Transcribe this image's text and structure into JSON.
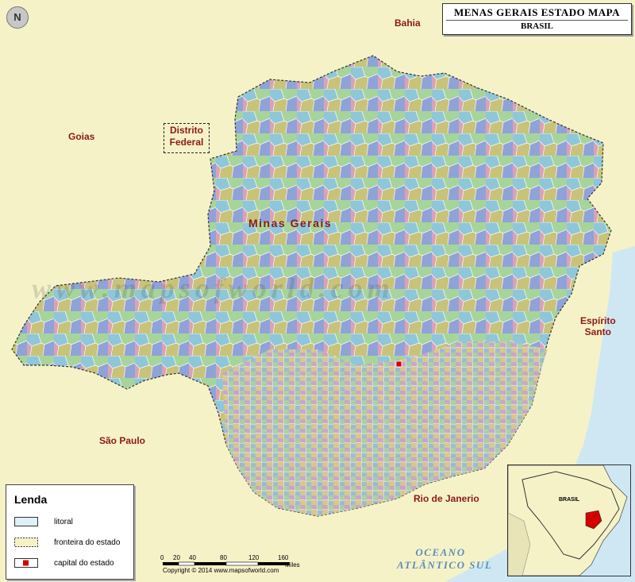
{
  "title": {
    "main": "MENAS GERAIS ESTADO MAPA",
    "sub": "BRASIL"
  },
  "labels": {
    "bahia": "Bahia",
    "goias": "Goias",
    "distrito_federal_line1": "Distrito",
    "distrito_federal_line2": "Federal",
    "minas_gerais": "Minas Gerais",
    "espirito_santo_line1": "Espírito",
    "espirito_santo_line2": "Santo",
    "sao_paulo": "São Paulo",
    "rio_de_janeiro": "Rio de Janerio",
    "oceano_line1": "OCEANO",
    "oceano_line2": "ATLÂNTICO SUL"
  },
  "legend": {
    "title": "Lenda",
    "items": [
      {
        "label": "litoral",
        "icon": "coastline-swatch"
      },
      {
        "label": "fronteira do estado",
        "icon": "state-border-swatch"
      },
      {
        "label": "capital do estado",
        "icon": "capital-marker"
      }
    ]
  },
  "scale": {
    "ticks": [
      "0",
      "20",
      "40",
      "80",
      "120",
      "160"
    ],
    "unit": "Miles",
    "copyright": "Copyright © 2014 www.mapsofworld.com"
  },
  "inset": {
    "label": "BRASIL"
  },
  "compass": {
    "letter": "N",
    "icon": "north-arrow-icon"
  },
  "watermark": "www.mapsofworld.com",
  "colors": {
    "land": "#f6f2c8",
    "sea": "#cfe7f3",
    "text_region": "#8b1a1a",
    "capital": "#d40000",
    "ocean_text": "#5c8fb8"
  }
}
